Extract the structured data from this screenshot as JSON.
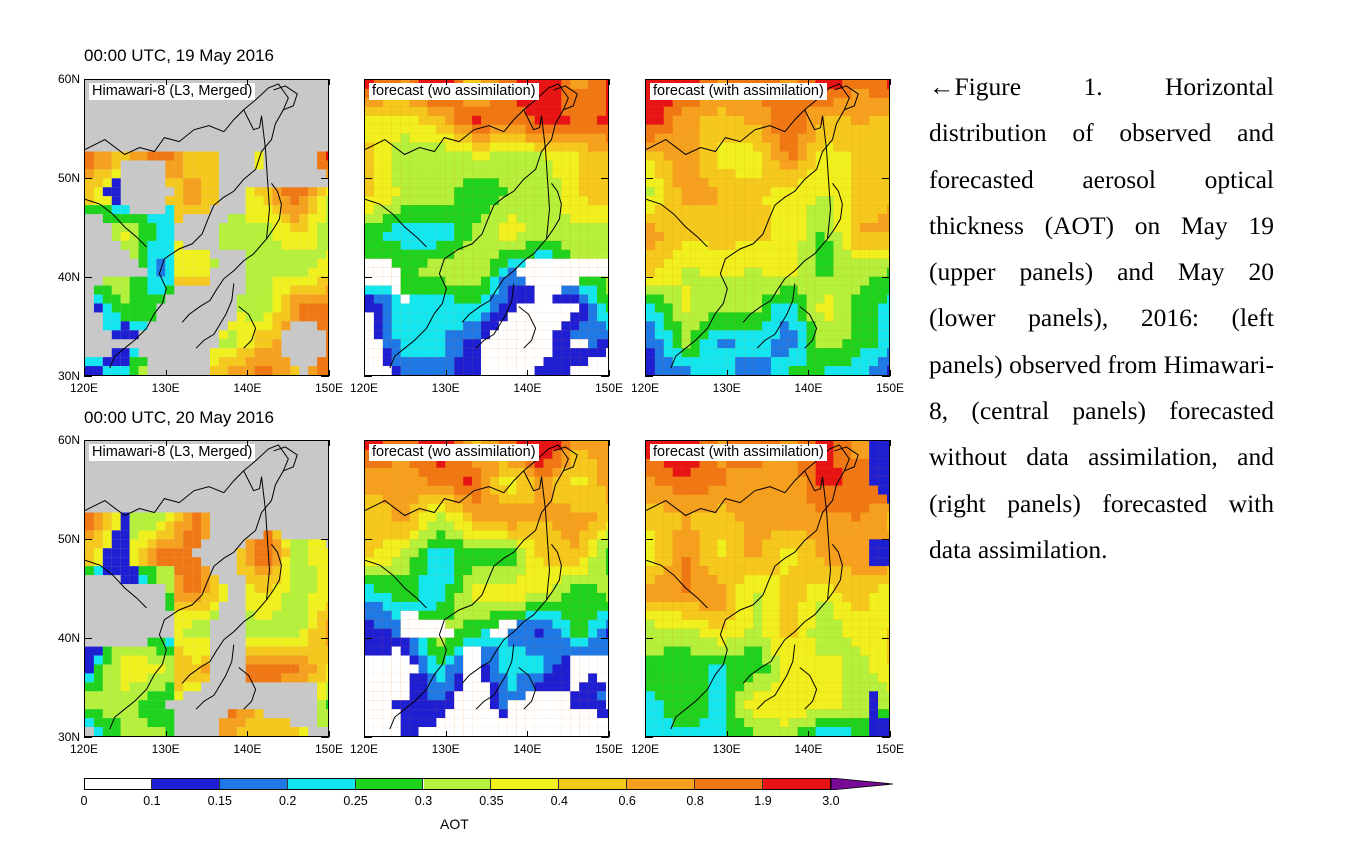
{
  "rows": [
    {
      "title": "00:00 UTC, 19 May 2016"
    },
    {
      "title": "00:00 UTC, 20 May 2016"
    }
  ],
  "panels": [
    {
      "row": 0,
      "col": 0,
      "label": "Himawari-8 (L3, Merged)",
      "kind": "obs"
    },
    {
      "row": 0,
      "col": 1,
      "label": "forecast (wo assimilation)",
      "kind": "fc_wo"
    },
    {
      "row": 0,
      "col": 2,
      "label": "forecast (with assimilation)",
      "kind": "fc_with"
    },
    {
      "row": 1,
      "col": 0,
      "label": "Himawari-8 (L3, Merged)",
      "kind": "obs"
    },
    {
      "row": 1,
      "col": 1,
      "label": "forecast (wo assimilation)",
      "kind": "fc_wo"
    },
    {
      "row": 1,
      "col": 2,
      "label": "forecast (with assimilation)",
      "kind": "fc_with"
    }
  ],
  "axes": {
    "lat_ticks": [
      "60N",
      "50N",
      "40N",
      "30N"
    ],
    "lon_ticks": [
      "120E",
      "130E",
      "140E",
      "150E"
    ],
    "lat_range": [
      30,
      60
    ],
    "lon_range": [
      120,
      150
    ]
  },
  "colorbar": {
    "label": "AOT",
    "ticks": [
      "0",
      "0.1",
      "0.15",
      "0.2",
      "0.25",
      "0.3",
      "0.35",
      "0.4",
      "0.6",
      "0.8",
      "1.9",
      "3.0"
    ],
    "colors": [
      "#ffffff",
      "#1e1ed2",
      "#1e78e6",
      "#14e6f0",
      "#1ed21e",
      "#b4f03c",
      "#f0f01e",
      "#f5c81e",
      "#f5a01e",
      "#f07814",
      "#e61414"
    ],
    "over_color": "#780a96",
    "missing_color": "#c8c8c8"
  },
  "caption": "←Figure 1. Horizontal distribution of observed and forecasted aerosol optical thickness (AOT) on May 19 (upper panels) and May 20 (lower panels), 2016: (left panels) observed from Himawari-8, (central panels) forecasted without data assimilation, and (right panels) forecasted with data assimilation."
}
